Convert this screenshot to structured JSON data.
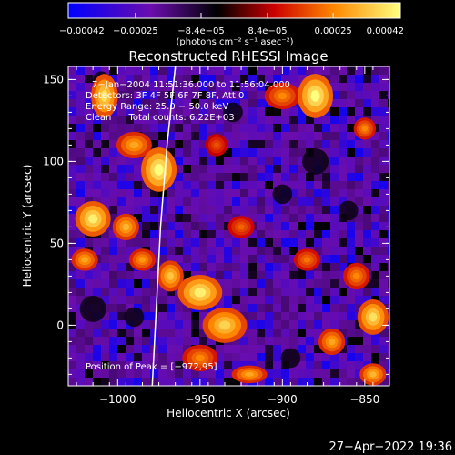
{
  "chart_data": {
    "type": "heatmap",
    "title": "Reconstructed RHESSI Image",
    "xlabel": "Heliocentric X (arcsec)",
    "ylabel": "Heliocentric Y (arcsec)",
    "xlim": [
      -1030,
      -835
    ],
    "ylim": [
      -37,
      158
    ],
    "x_ticks": [
      -1000,
      -950,
      -900,
      -850
    ],
    "y_ticks": [
      0,
      50,
      100,
      150
    ],
    "x_tick_labels": [
      "−1000",
      "−950",
      "−900",
      "−850"
    ],
    "y_tick_labels": [
      "0",
      "50",
      "100",
      "150"
    ],
    "colorbar": {
      "range": [
        -0.00042,
        0.00042
      ],
      "ticks": [
        -0.00042,
        -0.00025,
        -8.4e-05,
        8.4e-05,
        0.00025,
        0.00042
      ],
      "tick_labels": [
        "−0.00042",
        "−0.00025",
        "−8.4e−05",
        "8.4e−05",
        "0.00025",
        "0.00042"
      ],
      "unit_label": "(photons cm⁻² s⁻¹ asec⁻²)",
      "colors": [
        "#0000ff",
        "#6a0dad",
        "#000000",
        "#cc0000",
        "#ff8800",
        "#ffff80"
      ]
    },
    "annotations": [
      "7−Jan−2004 11:51:36.000 to 11:56:04.000",
      "Detectors: 3F 4F 5F 6F 7F 8F, Att 0",
      "Energy Range: 25.0 − 50.0 keV",
      "Clean      Total counts: 6.22E+03"
    ],
    "peak_text": "Position of Peak = [−972,95]",
    "peak": [
      -972,
      95
    ],
    "limb_line": [
      [
        -979,
        -37
      ],
      [
        -974,
        60
      ],
      [
        -970,
        110
      ],
      [
        -965,
        158
      ]
    ],
    "bright_regions": [
      {
        "x": -1008,
        "y": 140,
        "rx": 6,
        "ry": 10,
        "level": 0.9
      },
      {
        "x": -990,
        "y": 110,
        "rx": 8,
        "ry": 6,
        "level": 0.7
      },
      {
        "x": -975,
        "y": 95,
        "rx": 8,
        "ry": 10,
        "level": 1.0
      },
      {
        "x": -1015,
        "y": 65,
        "rx": 8,
        "ry": 8,
        "level": 0.95
      },
      {
        "x": -995,
        "y": 60,
        "rx": 6,
        "ry": 6,
        "level": 0.75
      },
      {
        "x": -985,
        "y": 40,
        "rx": 6,
        "ry": 5,
        "level": 0.65
      },
      {
        "x": -1020,
        "y": 40,
        "rx": 6,
        "ry": 5,
        "level": 0.7
      },
      {
        "x": -968,
        "y": 30,
        "rx": 6,
        "ry": 7,
        "level": 0.8
      },
      {
        "x": -950,
        "y": 20,
        "rx": 10,
        "ry": 8,
        "level": 0.95
      },
      {
        "x": -935,
        "y": 0,
        "rx": 10,
        "ry": 8,
        "level": 0.85
      },
      {
        "x": -950,
        "y": -20,
        "rx": 8,
        "ry": 6,
        "level": 0.6
      },
      {
        "x": -920,
        "y": -30,
        "rx": 8,
        "ry": 4,
        "level": 0.7
      },
      {
        "x": -900,
        "y": 140,
        "rx": 8,
        "ry": 6,
        "level": 0.6
      },
      {
        "x": -880,
        "y": 140,
        "rx": 8,
        "ry": 10,
        "level": 1.0
      },
      {
        "x": -850,
        "y": 120,
        "rx": 5,
        "ry": 5,
        "level": 0.6
      },
      {
        "x": -885,
        "y": 40,
        "rx": 6,
        "ry": 5,
        "level": 0.55
      },
      {
        "x": -855,
        "y": 30,
        "rx": 6,
        "ry": 6,
        "level": 0.6
      },
      {
        "x": -845,
        "y": 5,
        "rx": 7,
        "ry": 8,
        "level": 0.9
      },
      {
        "x": -870,
        "y": -10,
        "rx": 6,
        "ry": 6,
        "level": 0.7
      },
      {
        "x": -845,
        "y": -30,
        "rx": 6,
        "ry": 5,
        "level": 0.75
      },
      {
        "x": -925,
        "y": 60,
        "rx": 6,
        "ry": 5,
        "level": 0.5
      },
      {
        "x": -940,
        "y": 110,
        "rx": 5,
        "ry": 5,
        "level": 0.45
      }
    ],
    "dim_regions": [
      {
        "x": -880,
        "y": 100,
        "rx": 8,
        "ry": 8
      },
      {
        "x": -900,
        "y": 80,
        "rx": 6,
        "ry": 6
      },
      {
        "x": -1015,
        "y": 10,
        "rx": 8,
        "ry": 8
      },
      {
        "x": -990,
        "y": 5,
        "rx": 6,
        "ry": 6
      },
      {
        "x": -930,
        "y": 130,
        "rx": 6,
        "ry": 6
      },
      {
        "x": -860,
        "y": 70,
        "rx": 6,
        "ry": 6
      },
      {
        "x": -895,
        "y": -20,
        "rx": 6,
        "ry": 6
      },
      {
        "x": -1010,
        "y": 150,
        "rx": 5,
        "ry": 5
      }
    ],
    "grid": false
  },
  "footer": {
    "timestamp": "27−Apr−2022 19:36"
  }
}
